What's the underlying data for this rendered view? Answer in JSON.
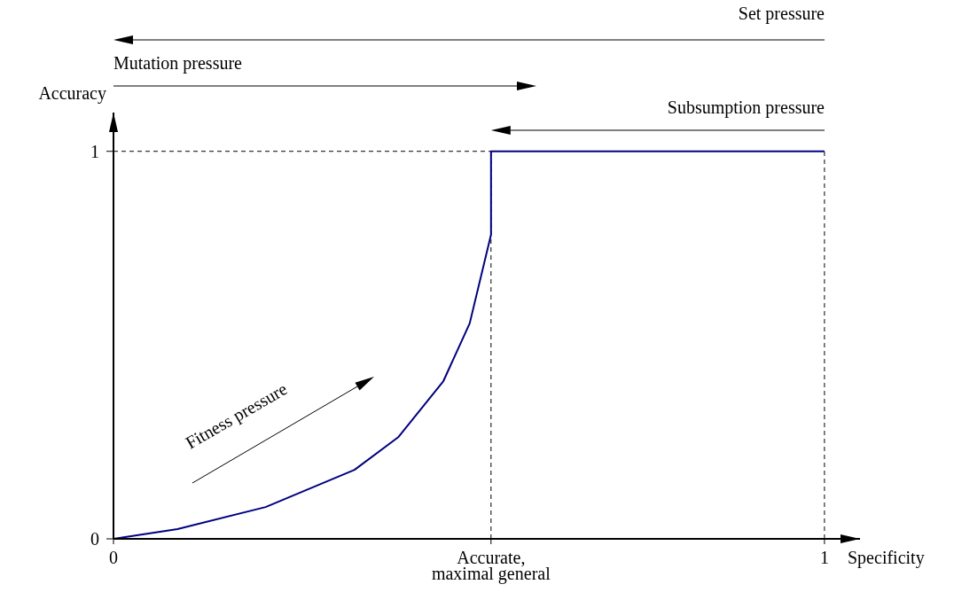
{
  "chart_data": {
    "type": "line",
    "xlabel": "Specificity",
    "ylabel": "Accuracy",
    "xlim": [
      0,
      1.05
    ],
    "ylim": [
      0,
      1.1
    ],
    "xticks": [
      0,
      {
        "value": 0.531,
        "label": "Accurate, maximal general"
      },
      1
    ],
    "yticks": [
      0,
      1
    ],
    "series": [
      {
        "color": "#00007f",
        "x": [
          0,
          0.09,
          0.214,
          0.339,
          0.401,
          0.464,
          0.501,
          0.531,
          0.531,
          1
        ],
        "values": [
          0,
          0.025,
          0.082,
          0.178,
          0.263,
          0.407,
          0.556,
          0.785,
          1,
          1
        ]
      }
    ],
    "ref_lines": [
      {
        "axis": "y",
        "value": 1,
        "line_style": "dashed"
      },
      {
        "axis": "x",
        "value": 0.531,
        "line_style": "dashed"
      },
      {
        "axis": "x",
        "value": 1,
        "line_style": "dashed"
      }
    ],
    "annotations": [
      "Set pressure",
      "Mutation pressure",
      "Subsumption pressure",
      "Fitness pressure"
    ],
    "grid": false,
    "marker": "none",
    "line_style": "solid"
  }
}
